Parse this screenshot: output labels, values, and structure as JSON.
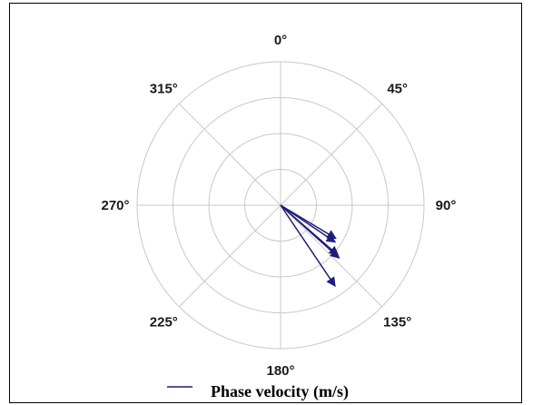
{
  "chart_data": {
    "type": "polar",
    "angle_labels": [
      "0°",
      "45°",
      "90°",
      "135°",
      "180°",
      "225°",
      "270°",
      "315°"
    ],
    "angle_values_deg": [
      0,
      45,
      90,
      135,
      180,
      225,
      270,
      315
    ],
    "angular_direction": "clockwise",
    "zero_location": "top",
    "rings": 4,
    "r_max": 1.0,
    "series": [
      {
        "name": "Phase velocity (m/s)",
        "color": "#1f1f7a",
        "arrows": [
          {
            "theta": 121,
            "r": 0.45
          },
          {
            "theta": 124,
            "r": 0.46
          },
          {
            "theta": 131,
            "r": 0.53
          },
          {
            "theta": 132,
            "r": 0.55
          },
          {
            "theta": 146,
            "r": 0.68
          }
        ]
      }
    ],
    "legend": {
      "label": "Phase velocity (m/s)",
      "placement": "bottom"
    },
    "grid": true
  }
}
